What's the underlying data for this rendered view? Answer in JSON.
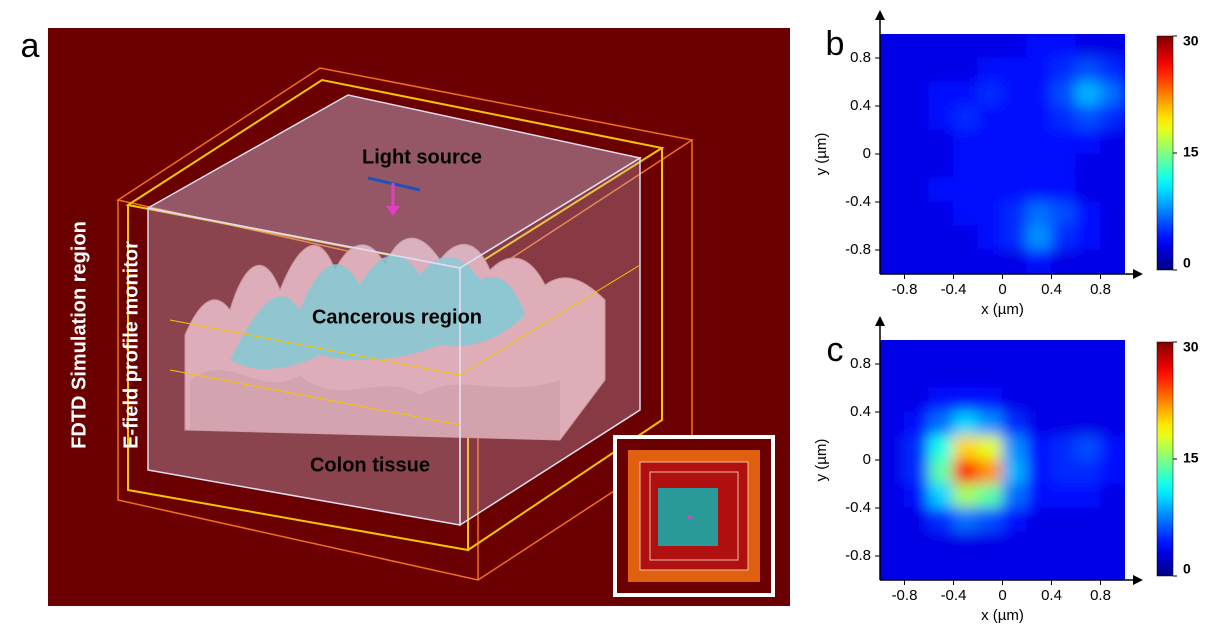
{
  "panel_a": {
    "label": "a",
    "texts": {
      "light_source": "Light source",
      "cancerous_region": "Cancerous region",
      "colon_tissue": "Colon tissue",
      "simulation_region": "FDTD Simulation region",
      "monitor": "E-field profile monitor"
    }
  },
  "chart_data": [
    {
      "type": "heatmap",
      "panel_label": "b",
      "colormap": "jet",
      "x": [
        -0.9,
        -0.7,
        -0.5,
        -0.3,
        -0.1,
        0.1,
        0.3,
        0.5,
        0.7,
        0.9
      ],
      "y": [
        0.9,
        0.7,
        0.5,
        0.3,
        0.1,
        -0.1,
        -0.3,
        -0.5,
        -0.7,
        -0.9
      ],
      "values": [
        [
          3,
          3,
          3,
          3,
          3,
          3,
          4,
          4,
          3,
          3
        ],
        [
          3,
          3,
          3,
          3,
          4,
          4,
          4,
          5,
          6,
          5
        ],
        [
          3,
          3,
          4,
          4,
          5,
          4,
          4,
          6,
          9,
          7
        ],
        [
          3,
          3,
          4,
          5,
          4,
          4,
          4,
          5,
          6,
          5
        ],
        [
          3,
          3,
          3,
          4,
          4,
          4,
          4,
          4,
          4,
          3
        ],
        [
          3,
          3,
          3,
          4,
          4,
          4,
          4,
          4,
          3,
          3
        ],
        [
          3,
          3,
          4,
          4,
          4,
          4,
          4,
          4,
          3,
          3
        ],
        [
          3,
          3,
          3,
          4,
          4,
          5,
          7,
          6,
          4,
          3
        ],
        [
          3,
          3,
          3,
          3,
          4,
          5,
          8,
          5,
          4,
          3
        ],
        [
          3,
          3,
          3,
          3,
          3,
          3,
          4,
          3,
          3,
          3
        ]
      ],
      "xlim": [
        -1,
        1
      ],
      "ylim": [
        -1,
        1
      ],
      "xticks": [
        -0.8,
        -0.4,
        0,
        0.4,
        0.8
      ],
      "yticks": [
        0.8,
        0.4,
        0,
        -0.4,
        -0.8
      ],
      "xlabel": "x (µm)",
      "ylabel": "y (µm)",
      "colorbar": {
        "lim": [
          0,
          30
        ],
        "ticks": [
          0,
          15,
          30
        ]
      }
    },
    {
      "type": "heatmap",
      "panel_label": "c",
      "colormap": "jet",
      "x": [
        -0.9,
        -0.7,
        -0.5,
        -0.3,
        -0.1,
        0.1,
        0.3,
        0.5,
        0.7,
        0.9
      ],
      "y": [
        0.9,
        0.7,
        0.5,
        0.3,
        0.1,
        -0.1,
        -0.3,
        -0.5,
        -0.7,
        -0.9
      ],
      "values": [
        [
          3,
          3,
          3,
          3,
          3,
          3,
          3,
          3,
          3,
          3
        ],
        [
          3,
          3,
          3,
          3,
          3,
          3,
          3,
          3,
          3,
          3
        ],
        [
          3,
          3,
          4,
          4,
          4,
          3,
          3,
          3,
          3,
          3
        ],
        [
          3,
          4,
          7,
          10,
          8,
          5,
          3,
          3,
          3,
          3
        ],
        [
          3,
          5,
          12,
          20,
          18,
          8,
          4,
          5,
          6,
          4
        ],
        [
          3,
          5,
          14,
          26,
          22,
          9,
          4,
          5,
          5,
          4
        ],
        [
          3,
          4,
          10,
          16,
          14,
          7,
          4,
          4,
          4,
          3
        ],
        [
          3,
          3,
          5,
          7,
          6,
          4,
          3,
          3,
          3,
          3
        ],
        [
          3,
          3,
          3,
          3,
          3,
          3,
          3,
          3,
          3,
          3
        ],
        [
          3,
          3,
          3,
          3,
          3,
          3,
          3,
          3,
          3,
          3
        ]
      ],
      "xlim": [
        -1,
        1
      ],
      "ylim": [
        -1,
        1
      ],
      "xticks": [
        -0.8,
        -0.4,
        0,
        0.4,
        0.8
      ],
      "yticks": [
        0.8,
        0.4,
        0,
        -0.4,
        -0.8
      ],
      "xlabel": "x (µm)",
      "ylabel": "y (µm)",
      "colorbar": {
        "lim": [
          0,
          30
        ],
        "ticks": [
          0,
          15,
          30
        ]
      }
    }
  ]
}
